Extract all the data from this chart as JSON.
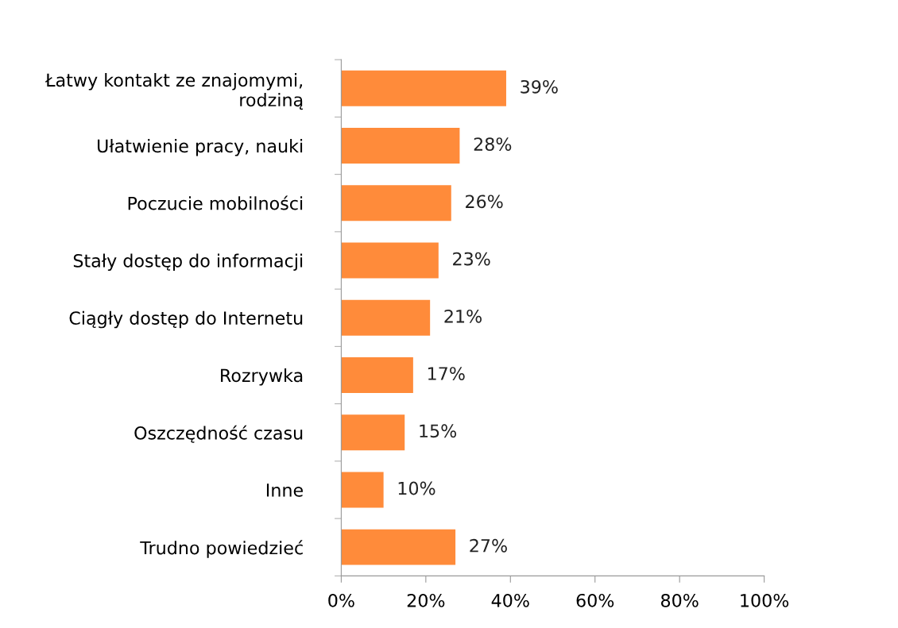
{
  "chart_data": {
    "type": "bar",
    "orientation": "horizontal",
    "categories": [
      "Łatwy kontakt ze znajomymi,\nrodziną",
      "Ułatwienie pracy, nauki",
      "Poczucie mobilności",
      "Stały dostęp do informacji",
      "Ciągły dostęp do Internetu",
      "Rozrywka",
      "Oszczędność czasu",
      "Inne",
      "Trudno powiedzieć"
    ],
    "values": [
      39,
      28,
      26,
      23,
      21,
      17,
      15,
      10,
      27
    ],
    "value_labels": [
      "39%",
      "28%",
      "26%",
      "23%",
      "21%",
      "17%",
      "15%",
      "10%",
      "27%"
    ],
    "color": "#ff8b3a",
    "xlim": [
      0,
      100
    ],
    "xticks": [
      {
        "value": 0,
        "label": "0%"
      },
      {
        "value": 20,
        "label": "20%"
      },
      {
        "value": 40,
        "label": "40%"
      },
      {
        "value": 60,
        "label": "60%"
      },
      {
        "value": 80,
        "label": "80%"
      },
      {
        "value": 100,
        "label": "100%"
      }
    ],
    "grid": false,
    "legend": false
  }
}
